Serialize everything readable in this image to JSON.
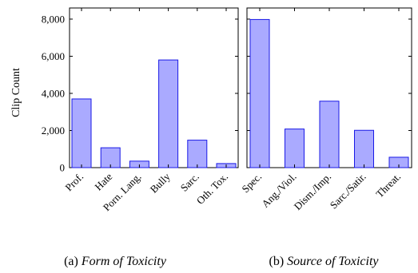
{
  "chart_data": [
    {
      "type": "bar",
      "categories": [
        "Prof.",
        "Hate",
        "Porn. Lang.",
        "Bully",
        "Sarc.",
        "Oth. Tox."
      ],
      "values": [
        3700,
        1070,
        350,
        5800,
        1480,
        220
      ],
      "ylabel": "Clip Count",
      "ylim": [
        0,
        8600
      ],
      "yticks": [
        0,
        2000,
        4000,
        6000,
        8000
      ],
      "ytick_labels": [
        "0",
        "2,000",
        "4,000",
        "6,000",
        "8,000"
      ],
      "caption_prefix": "(a)",
      "caption_title": "Form of Toxicity",
      "bar_fill": "#aaaaff",
      "bar_stroke": "#1a1ae6",
      "grid": false
    },
    {
      "type": "bar",
      "categories": [
        "Spec.",
        "Ang./Viol.",
        "Dism./Imp.",
        "Sarc./Satir.",
        "Threat."
      ],
      "values": [
        7980,
        2080,
        3580,
        2010,
        560
      ],
      "ylabel": "",
      "ylim": [
        0,
        8600
      ],
      "yticks": [
        0,
        2000,
        4000,
        6000,
        8000
      ],
      "caption_prefix": "(b)",
      "caption_title": "Source of Toxicity",
      "bar_fill": "#aaaaff",
      "bar_stroke": "#1a1ae6",
      "grid": false
    }
  ]
}
